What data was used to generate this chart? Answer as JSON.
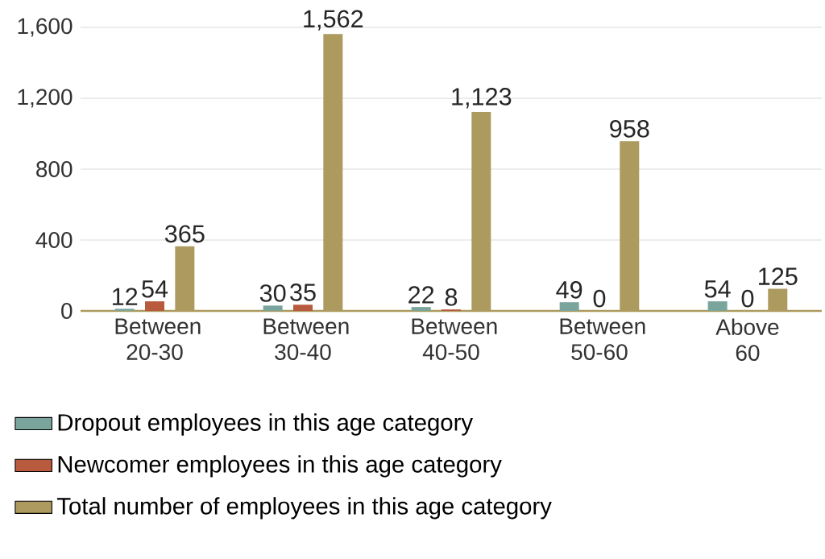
{
  "chart_data": {
    "type": "bar",
    "categories": [
      "Between 20-30",
      "Between 30-40",
      "Between 40-50",
      "Between 50-60",
      "Above 60"
    ],
    "series": [
      {
        "name": "Dropout employees in this age category",
        "color": "#7aa59c",
        "values": [
          12,
          30,
          22,
          49,
          54
        ],
        "value_labels": [
          "12",
          "30",
          "22",
          "49",
          "54"
        ]
      },
      {
        "name": "Newcomer employees in this age category",
        "color": "#b85a3e",
        "values": [
          54,
          35,
          8,
          0,
          0
        ],
        "value_labels": [
          "54",
          "35",
          "8",
          "0",
          "0"
        ]
      },
      {
        "name": "Total number of employees in this age category",
        "color": "#ac9a5e",
        "values": [
          365,
          1562,
          1123,
          958,
          125
        ],
        "value_labels": [
          "365",
          "1,562",
          "1,123",
          "958",
          "125"
        ]
      }
    ],
    "ylim": [
      0,
      1600
    ],
    "yticks": [
      0,
      400,
      800,
      {
        "value": 1200,
        "label": "1,200"
      },
      {
        "value": 1600,
        "label": "1,600"
      }
    ],
    "grid": "y",
    "legend": "bottom"
  }
}
